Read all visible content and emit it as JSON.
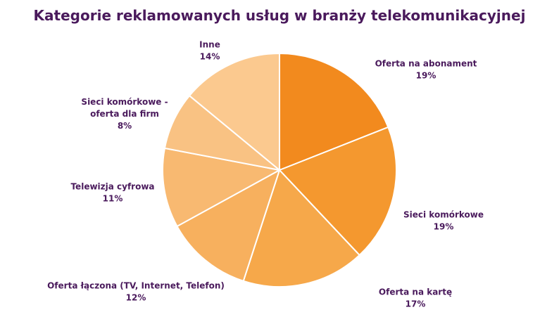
{
  "chart_data": {
    "type": "pie",
    "title": "Kategorie reklamowanych usług w branży telekomunikacyjnej",
    "slices": [
      {
        "label": [
          "Oferta na abonament"
        ],
        "percent_label": "19%",
        "value": 19,
        "color": "#f28a1e"
      },
      {
        "label": [
          "Sieci komórkowe"
        ],
        "percent_label": "19%",
        "value": 19,
        "color": "#f4982f"
      },
      {
        "label": [
          "Oferta na kartę"
        ],
        "percent_label": "17%",
        "value": 17,
        "color": "#f6a84a"
      },
      {
        "label": [
          "Oferta łączona (TV, Internet, Telefon)"
        ],
        "percent_label": "12%",
        "value": 12,
        "color": "#f7b05e"
      },
      {
        "label": [
          "Telewizja cyfrowa"
        ],
        "percent_label": "11%",
        "value": 11,
        "color": "#f8b971"
      },
      {
        "label": [
          "Sieci komórkowe -",
          "oferta dla firm"
        ],
        "percent_label": "8%",
        "value": 8,
        "color": "#f9c283"
      },
      {
        "label": [
          "Inne"
        ],
        "percent_label": "14%",
        "value": 14,
        "color": "#fbc98f"
      }
    ]
  }
}
